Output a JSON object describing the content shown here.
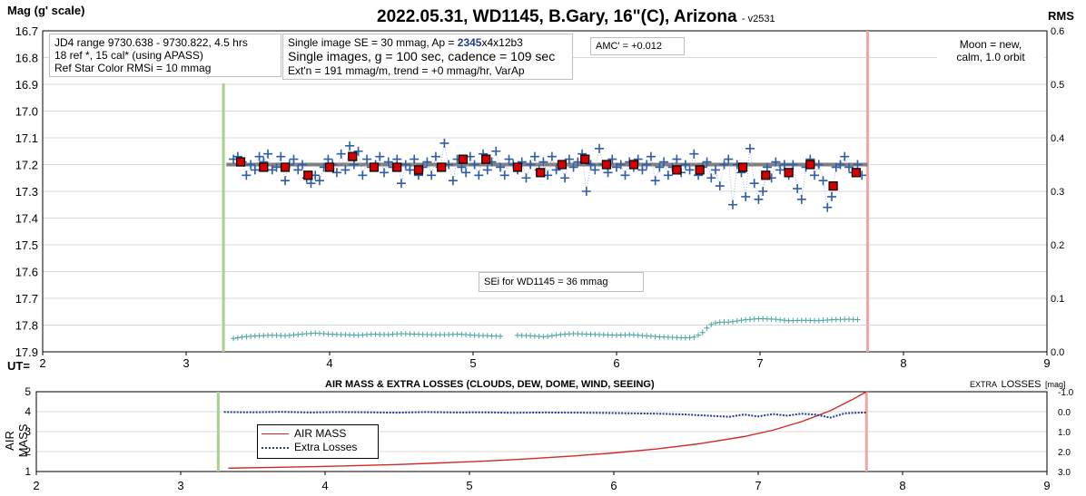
{
  "title": "2022.05.31, WD1145, B.Gary, 16\"(C), Arizona",
  "version": "- v2531",
  "top_left_axis_label": "Mag (g' scale)",
  "top_right_axis_label": "RMS",
  "ut_label": "UT=",
  "bottom_title": "AIR MASS & EXTRA LOSSES (CLOUDS, DEW, DOME, WIND, SEEING)",
  "bottom_left_axis_label": "AIR MASS",
  "bottom_right_axis_label_small": "EXTRA",
  "bottom_right_axis_label_big": "LOSSES",
  "bottom_right_axis_label_unit": "[mag]",
  "info_box_1": {
    "line1": "JD4 range 9730.638 - 9730.822, 4.5 hrs",
    "line2": "18 ref *, 15 cal* (using APASS)",
    "line3": "Ref Star Color RMSi = 10 mmag"
  },
  "info_box_2": {
    "line1_pre": "Single image SE = 30 mmag, Ap = ",
    "line1_ap": "2345",
    "line1_post": "x4x12b3",
    "line2": "Single images, g = 100 sec, cadence = 109 sec",
    "line3": "Ext'n = 191 mmag/m, trend = +0 mmag/hr, VarAp"
  },
  "amc_box": "AMC' = +0.012",
  "moon_box": {
    "line1": "Moon = new,",
    "line2": "calm,  1.0 orbit"
  },
  "se_box": "SEi for WD1145 = 36 mmag",
  "legend": {
    "air_mass": "AIR MASS",
    "extra_losses": "Extra Losses"
  },
  "colors": {
    "single": "#2e5ca8",
    "binned": "#d40000",
    "trend": "#7f7f7f",
    "rms": "#4aa3a3",
    "airmass": "#d22a2a",
    "losses": "#1f3e8c",
    "start_marker": "#a9d18e",
    "end_marker": "#f4a6a6",
    "ap_highlight": "#1f3e8c"
  },
  "chart_data": [
    {
      "type": "scatter",
      "name": "light curve",
      "xlim": [
        2,
        9
      ],
      "ylim": [
        16.7,
        17.9
      ],
      "y_inverted": true,
      "y2lim": [
        0.0,
        0.6
      ],
      "x_ticks": [
        2,
        3,
        4,
        5,
        6,
        7,
        8,
        9
      ],
      "y_ticks": [
        16.7,
        16.8,
        16.9,
        17.0,
        17.1,
        17.2,
        17.3,
        17.4,
        17.5,
        17.6,
        17.7,
        17.8,
        17.9
      ],
      "y2_ticks": [
        0.0,
        0.1,
        0.2,
        0.3,
        0.4,
        0.5,
        0.6
      ],
      "grid": true,
      "start_ut": 3.26,
      "end_ut": 7.75,
      "trend_line": [
        [
          3.28,
          17.2
        ],
        [
          7.75,
          17.2
        ]
      ],
      "single_images": [
        [
          3.33,
          17.18
        ],
        [
          3.36,
          17.17
        ],
        [
          3.39,
          17.19
        ],
        [
          3.42,
          17.24
        ],
        [
          3.45,
          17.2
        ],
        [
          3.48,
          17.22
        ],
        [
          3.51,
          17.17
        ],
        [
          3.54,
          17.19
        ],
        [
          3.57,
          17.16
        ],
        [
          3.6,
          17.22
        ],
        [
          3.63,
          17.21
        ],
        [
          3.66,
          17.17
        ],
        [
          3.69,
          17.26
        ],
        [
          3.72,
          17.2
        ],
        [
          3.75,
          17.18
        ],
        [
          3.78,
          17.22
        ],
        [
          3.81,
          17.2
        ],
        [
          3.84,
          17.25
        ],
        [
          3.87,
          17.27
        ],
        [
          3.9,
          17.24
        ],
        [
          3.93,
          17.26
        ],
        [
          3.96,
          17.21
        ],
        [
          3.99,
          17.18
        ],
        [
          4.02,
          17.2
        ],
        [
          4.05,
          17.23
        ],
        [
          4.08,
          17.16
        ],
        [
          4.11,
          17.22
        ],
        [
          4.14,
          17.13
        ],
        [
          4.17,
          17.2
        ],
        [
          4.2,
          17.15
        ],
        [
          4.23,
          17.24
        ],
        [
          4.26,
          17.18
        ],
        [
          4.29,
          17.21
        ],
        [
          4.32,
          17.2
        ],
        [
          4.35,
          17.17
        ],
        [
          4.38,
          17.23
        ],
        [
          4.41,
          17.19
        ],
        [
          4.44,
          17.21
        ],
        [
          4.47,
          17.18
        ],
        [
          4.5,
          17.27
        ],
        [
          4.53,
          17.2
        ],
        [
          4.56,
          17.22
        ],
        [
          4.59,
          17.18
        ],
        [
          4.62,
          17.24
        ],
        [
          4.65,
          17.21
        ],
        [
          4.68,
          17.19
        ],
        [
          4.71,
          17.24
        ],
        [
          4.74,
          17.17
        ],
        [
          4.77,
          17.21
        ],
        [
          4.8,
          17.12
        ],
        [
          4.83,
          17.2
        ],
        [
          4.86,
          17.26
        ],
        [
          4.89,
          17.18
        ],
        [
          4.92,
          17.21
        ],
        [
          4.95,
          17.23
        ],
        [
          4.98,
          17.17
        ],
        [
          5.01,
          17.2
        ],
        [
          5.04,
          17.24
        ],
        [
          5.07,
          17.16
        ],
        [
          5.1,
          17.22
        ],
        [
          5.13,
          17.19
        ],
        [
          5.16,
          17.15
        ],
        [
          5.19,
          17.21
        ],
        [
          5.22,
          17.24
        ],
        [
          5.25,
          17.18
        ],
        [
          5.28,
          17.2
        ],
        [
          5.31,
          17.22
        ],
        [
          5.34,
          17.19
        ],
        [
          5.37,
          17.25
        ],
        [
          5.4,
          17.2
        ],
        [
          5.43,
          17.17
        ],
        [
          5.46,
          17.22
        ],
        [
          5.49,
          17.19
        ],
        [
          5.52,
          17.24
        ],
        [
          5.55,
          17.17
        ],
        [
          5.58,
          17.22
        ],
        [
          5.61,
          17.2
        ],
        [
          5.64,
          17.25
        ],
        [
          5.67,
          17.18
        ],
        [
          5.7,
          17.21
        ],
        [
          5.73,
          17.19
        ],
        [
          5.76,
          17.16
        ],
        [
          5.79,
          17.3
        ],
        [
          5.82,
          17.2
        ],
        [
          5.85,
          17.22
        ],
        [
          5.88,
          17.14
        ],
        [
          5.91,
          17.2
        ],
        [
          5.94,
          17.23
        ],
        [
          5.97,
          17.18
        ],
        [
          6.0,
          17.21
        ],
        [
          6.03,
          17.2
        ],
        [
          6.06,
          17.24
        ],
        [
          6.09,
          17.19
        ],
        [
          6.12,
          17.21
        ],
        [
          6.15,
          17.18
        ],
        [
          6.18,
          17.22
        ],
        [
          6.21,
          17.2
        ],
        [
          6.24,
          17.17
        ],
        [
          6.27,
          17.26
        ],
        [
          6.3,
          17.21
        ],
        [
          6.33,
          17.19
        ],
        [
          6.36,
          17.24
        ],
        [
          6.39,
          17.21
        ],
        [
          6.42,
          17.18
        ],
        [
          6.45,
          17.23
        ],
        [
          6.48,
          17.2
        ],
        [
          6.51,
          17.22
        ],
        [
          6.54,
          17.16
        ],
        [
          6.57,
          17.24
        ],
        [
          6.6,
          17.21
        ],
        [
          6.63,
          17.19
        ],
        [
          6.66,
          17.25
        ],
        [
          6.69,
          17.22
        ],
        [
          6.72,
          17.28
        ],
        [
          6.75,
          17.2
        ],
        [
          6.78,
          17.18
        ],
        [
          6.81,
          17.35
        ],
        [
          6.84,
          17.2
        ],
        [
          6.87,
          17.23
        ],
        [
          6.9,
          17.32
        ],
        [
          6.93,
          17.14
        ],
        [
          6.96,
          17.27
        ],
        [
          6.99,
          17.33
        ],
        [
          7.02,
          17.3
        ],
        [
          7.05,
          17.21
        ],
        [
          7.08,
          17.25
        ],
        [
          7.11,
          17.19
        ],
        [
          7.14,
          17.22
        ],
        [
          7.17,
          17.2
        ],
        [
          7.2,
          17.24
        ],
        [
          7.23,
          17.2
        ],
        [
          7.26,
          17.29
        ],
        [
          7.29,
          17.33
        ],
        [
          7.32,
          17.21
        ],
        [
          7.35,
          17.18
        ],
        [
          7.38,
          17.24
        ],
        [
          7.41,
          17.2
        ],
        [
          7.44,
          17.26
        ],
        [
          7.47,
          17.36
        ],
        [
          7.5,
          17.32
        ],
        [
          7.53,
          17.21
        ],
        [
          7.56,
          17.2
        ],
        [
          7.59,
          17.17
        ],
        [
          7.62,
          17.21
        ],
        [
          7.65,
          17.23
        ],
        [
          7.68,
          17.2
        ],
        [
          7.71,
          17.24
        ]
      ],
      "binned_points": [
        [
          3.38,
          17.19
        ],
        [
          3.54,
          17.21
        ],
        [
          3.69,
          17.21
        ],
        [
          3.85,
          17.24
        ],
        [
          4.0,
          17.21
        ],
        [
          4.16,
          17.17
        ],
        [
          4.31,
          17.21
        ],
        [
          4.47,
          17.21
        ],
        [
          4.62,
          17.22
        ],
        [
          4.78,
          17.21
        ],
        [
          4.93,
          17.18
        ],
        [
          5.09,
          17.18
        ],
        [
          5.31,
          17.21
        ],
        [
          5.47,
          17.23
        ],
        [
          5.62,
          17.2
        ],
        [
          5.78,
          17.18
        ],
        [
          5.93,
          17.2
        ],
        [
          6.12,
          17.2
        ],
        [
          6.42,
          17.22
        ],
        [
          6.58,
          17.22
        ],
        [
          6.88,
          17.21
        ],
        [
          7.04,
          17.24
        ],
        [
          7.2,
          17.23
        ],
        [
          7.35,
          17.2
        ],
        [
          7.51,
          17.28
        ],
        [
          7.67,
          17.23
        ]
      ],
      "rms": [
        [
          3.33,
          0.025
        ],
        [
          3.4,
          0.028
        ],
        [
          3.5,
          0.03
        ],
        [
          3.6,
          0.031
        ],
        [
          3.7,
          0.03
        ],
        [
          3.8,
          0.033
        ],
        [
          3.9,
          0.035
        ],
        [
          4.0,
          0.033
        ],
        [
          4.1,
          0.032
        ],
        [
          4.2,
          0.031
        ],
        [
          4.3,
          0.033
        ],
        [
          4.4,
          0.032
        ],
        [
          4.5,
          0.034
        ],
        [
          4.6,
          0.033
        ],
        [
          4.7,
          0.032
        ],
        [
          4.8,
          0.032
        ],
        [
          4.9,
          0.033
        ],
        [
          5.0,
          0.031
        ],
        [
          5.1,
          0.03
        ],
        [
          5.2,
          0.029
        ],
        [
          5.3,
          0.031
        ],
        [
          5.4,
          0.03
        ],
        [
          5.5,
          0.028
        ],
        [
          5.6,
          0.032
        ],
        [
          5.7,
          0.034
        ],
        [
          5.8,
          0.033
        ],
        [
          5.9,
          0.032
        ],
        [
          6.0,
          0.031
        ],
        [
          6.1,
          0.032
        ],
        [
          6.2,
          0.03
        ],
        [
          6.3,
          0.028
        ],
        [
          6.4,
          0.027
        ],
        [
          6.5,
          0.026
        ],
        [
          6.55,
          0.028
        ],
        [
          6.6,
          0.036
        ],
        [
          6.65,
          0.05
        ],
        [
          6.7,
          0.055
        ],
        [
          6.8,
          0.056
        ],
        [
          6.9,
          0.06
        ],
        [
          7.0,
          0.062
        ],
        [
          7.1,
          0.061
        ],
        [
          7.2,
          0.058
        ],
        [
          7.3,
          0.059
        ],
        [
          7.4,
          0.058
        ],
        [
          7.5,
          0.06
        ],
        [
          7.6,
          0.061
        ],
        [
          7.7,
          0.06
        ]
      ],
      "rms_gap": [
        5.2,
        5.3
      ]
    },
    {
      "type": "line",
      "name": "air mass and extra losses",
      "xlim": [
        2,
        9
      ],
      "x_ticks": [
        2,
        3,
        4,
        5,
        6,
        7,
        8,
        9
      ],
      "ylabel": "AIR MASS",
      "ylim": [
        1,
        5
      ],
      "y_ticks": [
        1,
        2,
        3,
        4,
        5
      ],
      "y2lim": [
        -1.0,
        3.0
      ],
      "y2_inverted": true,
      "y2_ticks": [
        -1.0,
        0.0,
        1.0,
        2.0,
        3.0
      ],
      "series": [
        {
          "name": "AIR MASS",
          "x": [
            3.33,
            3.6,
            3.9,
            4.2,
            4.5,
            4.8,
            5.1,
            5.4,
            5.7,
            6.0,
            6.3,
            6.6,
            6.9,
            7.1,
            7.3,
            7.5,
            7.65,
            7.75
          ],
          "values": [
            1.17,
            1.2,
            1.24,
            1.29,
            1.35,
            1.43,
            1.52,
            1.63,
            1.77,
            1.93,
            2.13,
            2.4,
            2.75,
            3.07,
            3.5,
            4.05,
            4.6,
            5.0
          ]
        },
        {
          "name": "Extra Losses",
          "x": [
            3.3,
            3.5,
            3.7,
            3.9,
            4.1,
            4.3,
            4.5,
            4.7,
            4.9,
            5.1,
            5.3,
            5.5,
            5.7,
            5.9,
            6.1,
            6.3,
            6.5,
            6.6,
            6.7,
            6.8,
            6.9,
            7.0,
            7.1,
            7.2,
            7.3,
            7.4,
            7.5,
            7.6,
            7.7,
            7.75
          ],
          "values": [
            0.02,
            0.03,
            0.01,
            0.04,
            0.02,
            0.03,
            0.05,
            0.02,
            0.04,
            0.03,
            0.06,
            0.04,
            0.05,
            0.06,
            0.08,
            0.1,
            0.14,
            0.18,
            0.22,
            0.26,
            0.14,
            0.24,
            0.12,
            0.2,
            0.1,
            0.15,
            0.3,
            0.08,
            0.05,
            0.04
          ]
        }
      ]
    }
  ]
}
